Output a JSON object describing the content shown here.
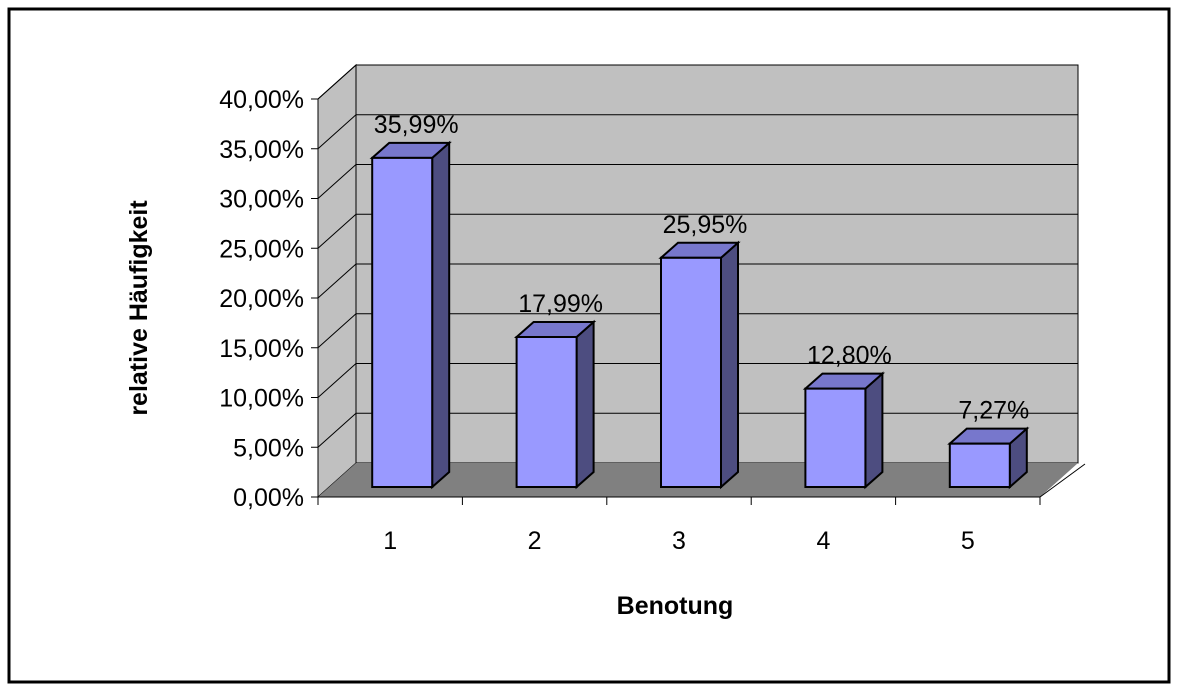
{
  "chart_data": {
    "type": "bar",
    "categories": [
      "1",
      "2",
      "3",
      "4",
      "5"
    ],
    "values": [
      35.99,
      17.99,
      25.95,
      12.8,
      7.27
    ],
    "data_labels": [
      "35,99%",
      "17,99%",
      "25,95%",
      "12,80%",
      "7,27%"
    ],
    "xlabel": "Benotung",
    "ylabel": "relative Häufigkeit",
    "ylim": [
      0,
      40
    ],
    "yticks": [
      0,
      5,
      10,
      15,
      20,
      25,
      30,
      35,
      40
    ],
    "ytick_labels": [
      "0,00%",
      "5,00%",
      "10,00%",
      "15,00%",
      "20,00%",
      "25,00%",
      "30,00%",
      "35,00%",
      "40,00%"
    ],
    "grid": true,
    "legend": "none",
    "style": "3d"
  },
  "colors": {
    "bar_front": "#9999ff",
    "bar_side": "#4d4d80",
    "bar_top": "#7777cc",
    "wall": "#c0c0c0",
    "floor": "#808080",
    "frame": "#000000"
  }
}
